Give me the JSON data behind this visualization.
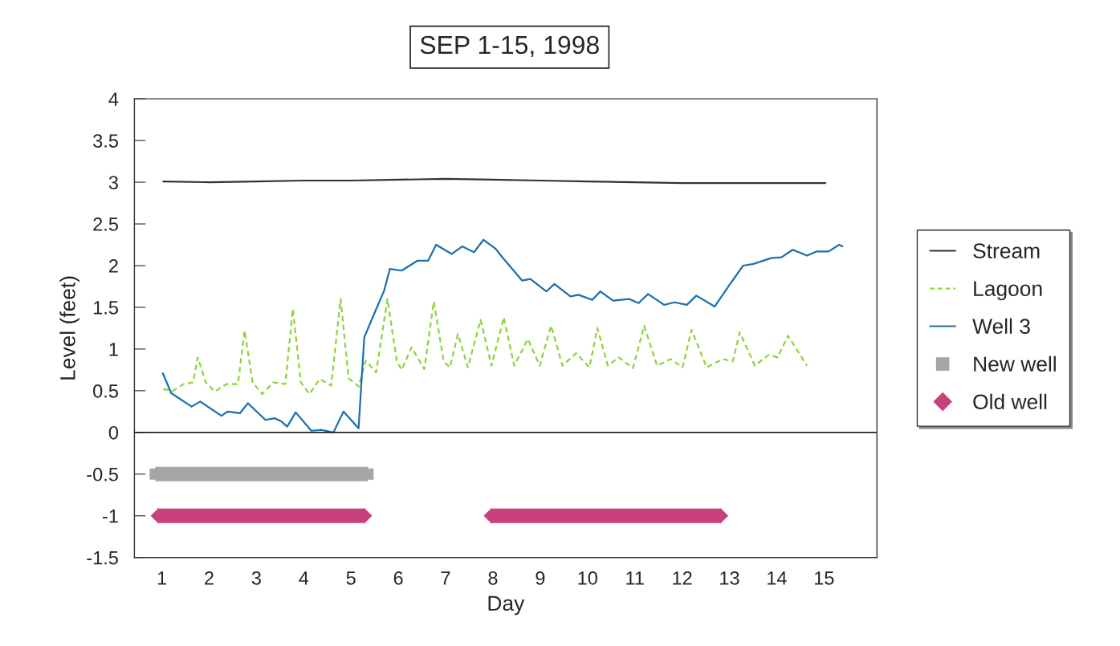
{
  "chart_data": {
    "type": "line",
    "title": "SEP 1-15, 1998",
    "xlabel": "Day",
    "ylabel": "Level (feet)",
    "xlim": [
      0.42,
      16.12
    ],
    "xticks": [
      1,
      2,
      3,
      4,
      5,
      6,
      7,
      8,
      9,
      10,
      11,
      12,
      13,
      14,
      15
    ],
    "ylim": [
      -1.5,
      4
    ],
    "yticks": [
      -1.5,
      -1,
      -0.5,
      0,
      0.5,
      1,
      1.5,
      2,
      2.5,
      3,
      3.5,
      4
    ],
    "grid": false,
    "legend": "right",
    "marker": "none",
    "ref_lines": [
      {
        "axis": "y",
        "value": 0,
        "color": "#222222"
      }
    ],
    "series": [
      {
        "name": "Stream",
        "color": "#333333",
        "line_style": "solid",
        "x": [
          1.03,
          2,
          3,
          4,
          5,
          6,
          7,
          8,
          9,
          10,
          11,
          12,
          13,
          14,
          15.03
        ],
        "values": [
          3.01,
          3.0,
          3.01,
          3.02,
          3.02,
          3.03,
          3.04,
          3.03,
          3.02,
          3.01,
          3.0,
          2.99,
          2.99,
          2.99,
          2.99
        ]
      },
      {
        "name": "Lagoon",
        "color": "#8cd43a",
        "line_style": "dashed",
        "x": [
          1.03,
          1.24,
          1.46,
          1.66,
          1.76,
          1.93,
          2.12,
          2.37,
          2.61,
          2.75,
          2.92,
          3.12,
          3.36,
          3.61,
          3.77,
          3.94,
          4.12,
          4.34,
          4.58,
          4.78,
          4.95,
          5.16,
          5.31,
          5.53,
          5.77,
          5.97,
          6.07,
          6.28,
          6.55,
          6.75,
          6.96,
          7.09,
          7.26,
          7.47,
          7.74,
          7.97,
          8.23,
          8.45,
          8.74,
          8.99,
          9.23,
          9.47,
          9.76,
          10.04,
          10.21,
          10.43,
          10.66,
          10.96,
          11.2,
          11.47,
          11.76,
          12.01,
          12.2,
          12.52,
          12.86,
          13.07,
          13.22,
          13.54,
          13.83,
          14.02,
          14.24,
          14.64
        ],
        "values": [
          0.52,
          0.5,
          0.58,
          0.6,
          0.9,
          0.6,
          0.49,
          0.58,
          0.58,
          1.22,
          0.6,
          0.46,
          0.6,
          0.58,
          1.48,
          0.6,
          0.46,
          0.64,
          0.56,
          1.6,
          0.65,
          0.55,
          0.86,
          0.72,
          1.6,
          0.85,
          0.75,
          1.02,
          0.76,
          1.57,
          0.85,
          0.78,
          1.18,
          0.78,
          1.35,
          0.8,
          1.38,
          0.8,
          1.12,
          0.8,
          1.28,
          0.8,
          0.95,
          0.78,
          1.25,
          0.8,
          0.9,
          0.77,
          1.28,
          0.8,
          0.88,
          0.78,
          1.23,
          0.78,
          0.88,
          0.85,
          1.2,
          0.8,
          0.93,
          0.9,
          1.16,
          0.8
        ]
      },
      {
        "name": "Well 3",
        "color": "#1a6fad",
        "line_style": "solid",
        "x": [
          1.02,
          1.2,
          1.63,
          1.81,
          2.26,
          2.39,
          2.65,
          2.82,
          3.19,
          3.39,
          3.53,
          3.65,
          3.83,
          4.16,
          4.38,
          4.63,
          4.84,
          5.16,
          5.28,
          5.45,
          5.7,
          5.82,
          6.07,
          6.41,
          6.63,
          6.8,
          7.13,
          7.35,
          7.6,
          7.8,
          8.06,
          8.23,
          8.62,
          8.79,
          9.13,
          9.3,
          9.64,
          9.81,
          10.1,
          10.27,
          10.54,
          10.88,
          11.08,
          11.28,
          11.62,
          11.84,
          12.1,
          12.3,
          12.69,
          12.98,
          13.29,
          13.51,
          13.88,
          14.1,
          14.34,
          14.64,
          14.85,
          15.1,
          15.32,
          15.39
        ],
        "values": [
          0.71,
          0.47,
          0.31,
          0.37,
          0.2,
          0.25,
          0.23,
          0.35,
          0.15,
          0.17,
          0.13,
          0.07,
          0.24,
          0.02,
          0.03,
          0.0,
          0.25,
          0.05,
          1.14,
          1.37,
          1.7,
          1.96,
          1.94,
          2.06,
          2.06,
          2.25,
          2.14,
          2.23,
          2.16,
          2.31,
          2.2,
          2.08,
          1.82,
          1.84,
          1.69,
          1.78,
          1.63,
          1.65,
          1.59,
          1.69,
          1.58,
          1.6,
          1.55,
          1.66,
          1.53,
          1.56,
          1.53,
          1.64,
          1.51,
          1.75,
          2.0,
          2.02,
          2.09,
          2.1,
          2.19,
          2.12,
          2.17,
          2.17,
          2.25,
          2.23
        ]
      },
      {
        "name": "New well",
        "color": "#a6a6a6",
        "marker": "square",
        "x": [
          0.86,
          5.36
        ],
        "values": [
          -0.5,
          -0.5
        ]
      },
      {
        "name": "Old well",
        "color": "#c8417d",
        "marker": "diamond",
        "x": [
          0.93,
          5.28,
          6.5,
          7.97,
          12.81
        ],
        "values": [
          -1,
          -1,
          null,
          -1,
          -1
        ]
      }
    ]
  }
}
